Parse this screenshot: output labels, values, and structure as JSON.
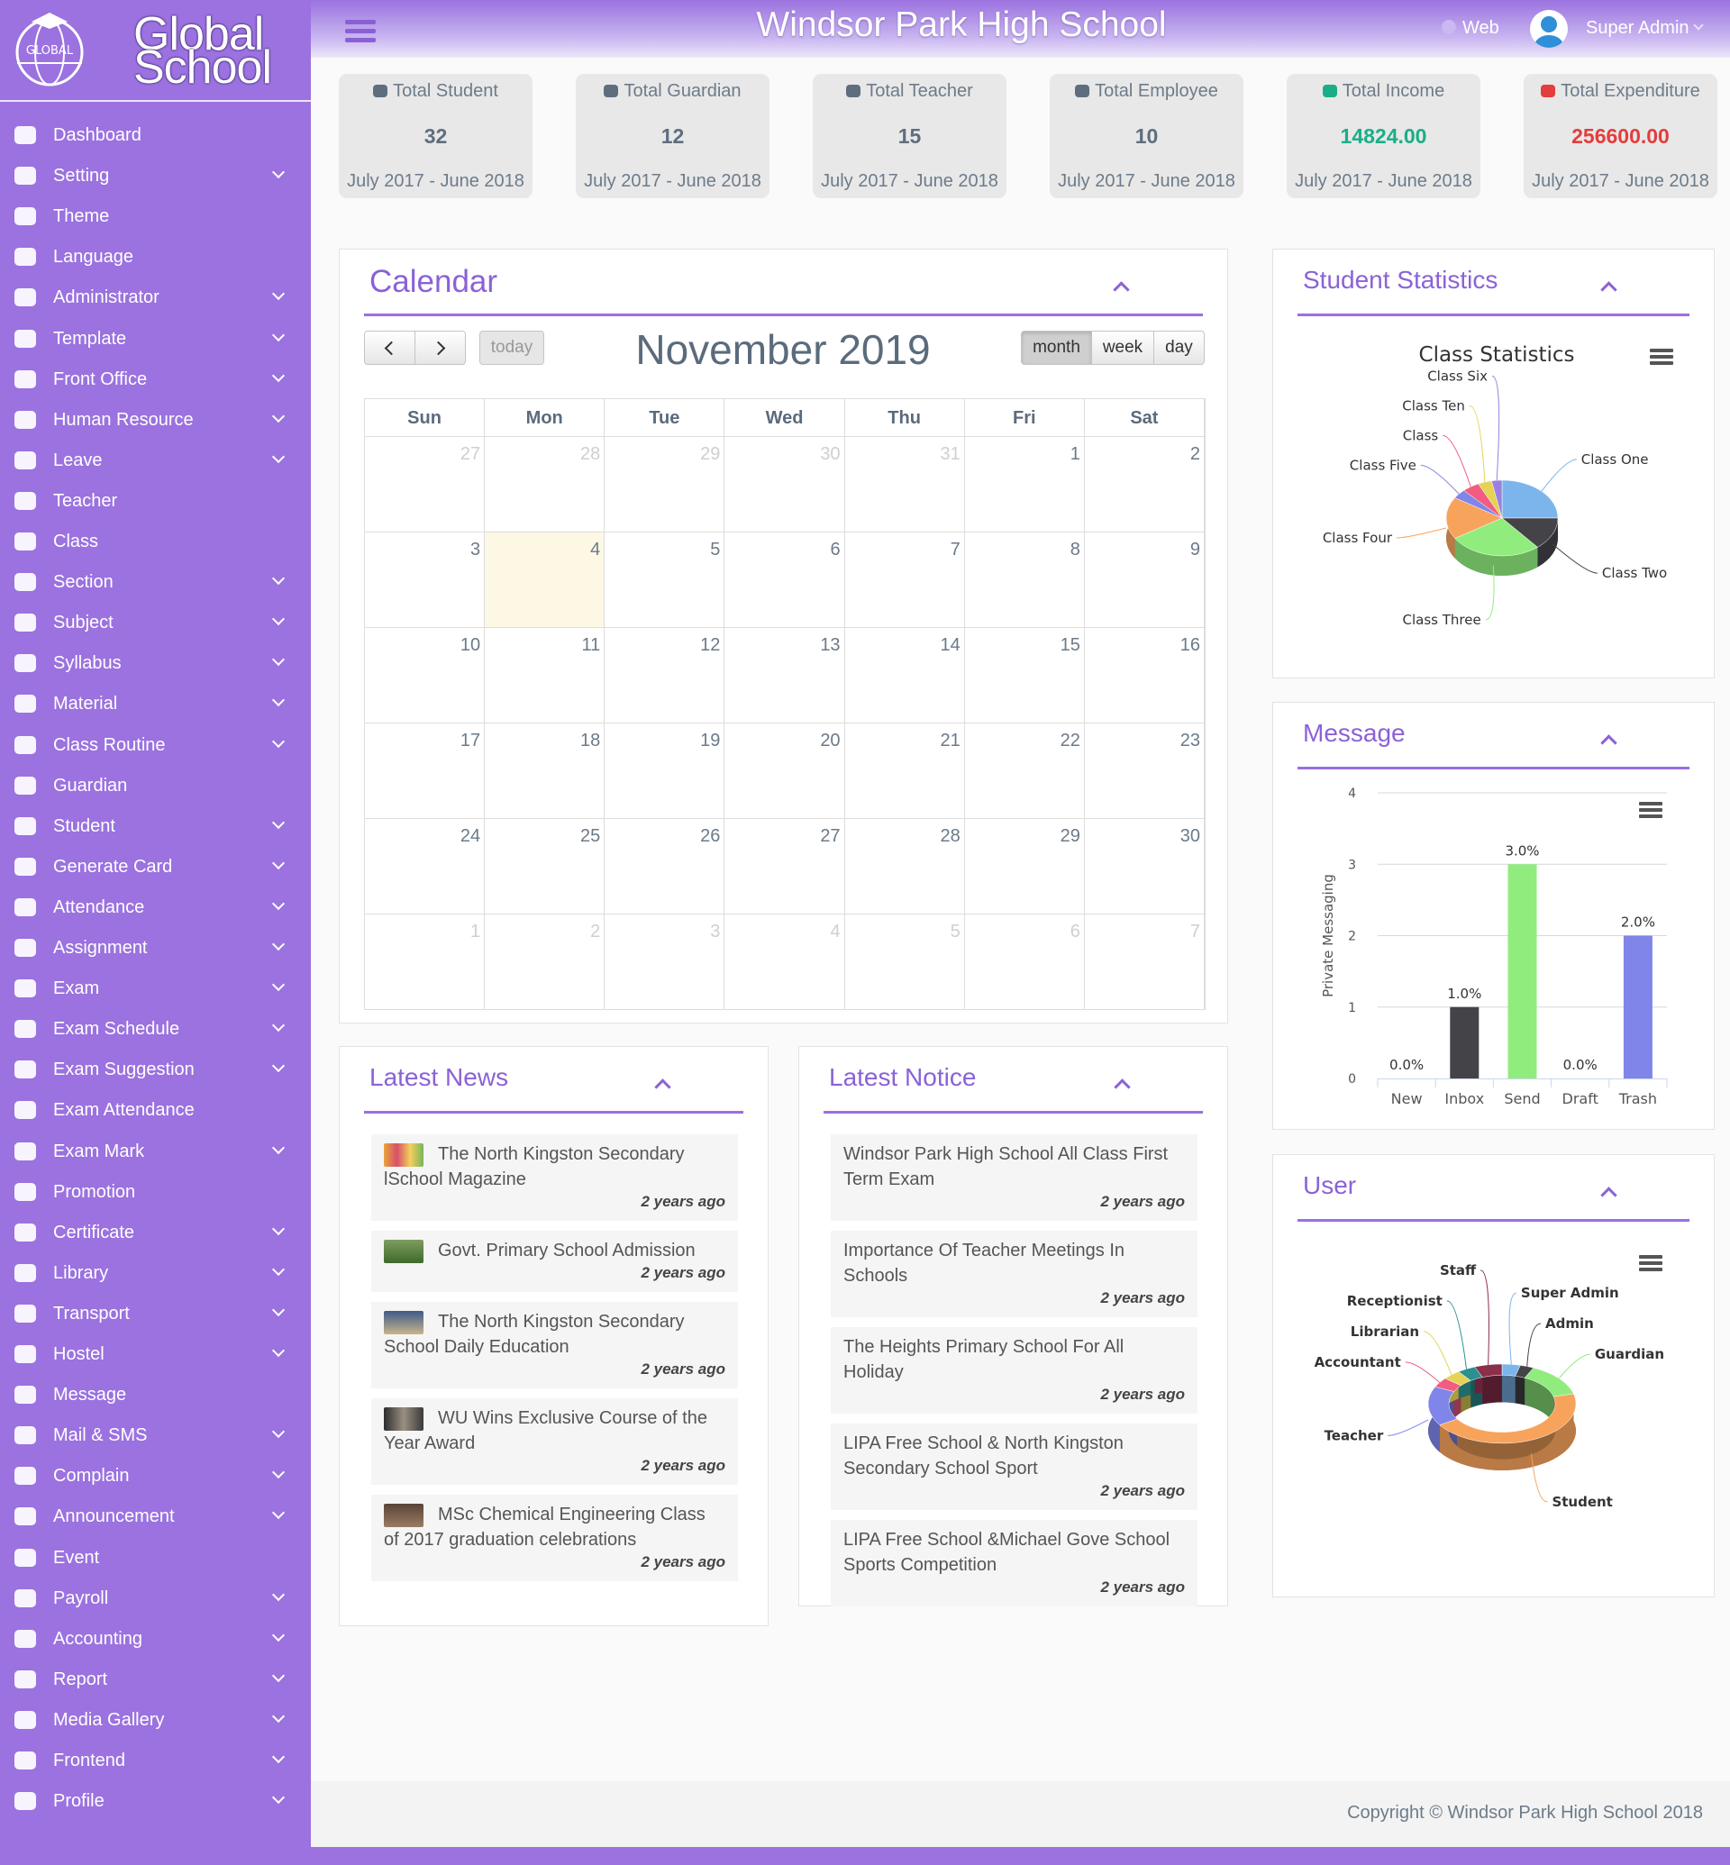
{
  "brand": {
    "logo_text": "GLOBAL",
    "name_line1": "Global",
    "name_line2": "School"
  },
  "header": {
    "title": "Windsor Park High School",
    "web_link": "Web",
    "user": "Super Admin"
  },
  "sidebar": {
    "menu": [
      {
        "label": "Dashboard",
        "submenu": false
      },
      {
        "label": "Setting",
        "submenu": true
      },
      {
        "label": "Theme",
        "submenu": false
      },
      {
        "label": "Language",
        "submenu": false
      },
      {
        "label": "Administrator",
        "submenu": true
      },
      {
        "label": "Template",
        "submenu": true
      },
      {
        "label": "Front Office",
        "submenu": true
      },
      {
        "label": "Human Resource",
        "submenu": true
      },
      {
        "label": "Leave",
        "submenu": true
      },
      {
        "label": "Teacher",
        "submenu": false
      },
      {
        "label": "Class",
        "submenu": false
      },
      {
        "label": "Section",
        "submenu": true
      },
      {
        "label": "Subject",
        "submenu": true
      },
      {
        "label": "Syllabus",
        "submenu": true
      },
      {
        "label": "Material",
        "submenu": true
      },
      {
        "label": "Class Routine",
        "submenu": true
      },
      {
        "label": "Guardian",
        "submenu": false
      },
      {
        "label": "Student",
        "submenu": true
      },
      {
        "label": "Generate Card",
        "submenu": true
      },
      {
        "label": "Attendance",
        "submenu": true
      },
      {
        "label": "Assignment",
        "submenu": true
      },
      {
        "label": "Exam",
        "submenu": true
      },
      {
        "label": "Exam Schedule",
        "submenu": true
      },
      {
        "label": "Exam Suggestion",
        "submenu": true
      },
      {
        "label": "Exam Attendance",
        "submenu": false
      },
      {
        "label": "Exam Mark",
        "submenu": true
      },
      {
        "label": "Promotion",
        "submenu": false
      },
      {
        "label": "Certificate",
        "submenu": true
      },
      {
        "label": "Library",
        "submenu": true
      },
      {
        "label": "Transport",
        "submenu": true
      },
      {
        "label": "Hostel",
        "submenu": true
      },
      {
        "label": "Message",
        "submenu": false
      },
      {
        "label": "Mail & SMS",
        "submenu": true
      },
      {
        "label": "Complain",
        "submenu": true
      },
      {
        "label": "Announcement",
        "submenu": true
      },
      {
        "label": "Event",
        "submenu": false
      },
      {
        "label": "Payroll",
        "submenu": true
      },
      {
        "label": "Accounting",
        "submenu": true
      },
      {
        "label": "Report",
        "submenu": true
      },
      {
        "label": "Media Gallery",
        "submenu": true
      },
      {
        "label": "Frontend",
        "submenu": true
      },
      {
        "label": "Profile",
        "submenu": true
      }
    ]
  },
  "stats": [
    {
      "label": "Total Student",
      "value": 32,
      "period": "July 2017 - June 2018",
      "color": "#5f6e7e"
    },
    {
      "label": "Total Guardian",
      "value": 12,
      "period": "July 2017 - June 2018",
      "color": "#5f6e7e"
    },
    {
      "label": "Total Teacher",
      "value": 15,
      "period": "July 2017 - June 2018",
      "color": "#5f6e7e"
    },
    {
      "label": "Total Employee",
      "value": 10,
      "period": "July 2017 - June 2018",
      "color": "#5f6e7e"
    },
    {
      "label": "Total Income",
      "value": "14824.00",
      "period": "July 2017 - June 2018",
      "color": "#1aae88"
    },
    {
      "label": "Total Expenditure",
      "value": "256600.00",
      "period": "July 2017 - June 2018",
      "color": "#e33d3d"
    }
  ],
  "calendar": {
    "title": "Calendar",
    "month_title": "November 2019",
    "today_button": "today",
    "views": [
      "month",
      "week",
      "day"
    ],
    "active_view": "month",
    "weekdays": [
      "Sun",
      "Mon",
      "Tue",
      "Wed",
      "Thu",
      "Fri",
      "Sat"
    ],
    "weeks": [
      [
        27,
        28,
        29,
        30,
        31,
        1,
        2
      ],
      [
        3,
        4,
        5,
        6,
        7,
        8,
        9
      ],
      [
        10,
        11,
        12,
        13,
        14,
        15,
        16
      ],
      [
        17,
        18,
        19,
        20,
        21,
        22,
        23
      ],
      [
        24,
        25,
        26,
        27,
        28,
        29,
        30
      ],
      [
        1,
        2,
        3,
        4,
        5,
        6,
        7
      ]
    ]
  },
  "panels": {
    "student_statistics": "Student Statistics",
    "message": "Message",
    "user": "User",
    "latest_news": "Latest News",
    "latest_notice": "Latest Notice"
  },
  "news": [
    {
      "title": "The North Kingston Secondary lSchool Magazine",
      "time": "2 years ago"
    },
    {
      "title": "Govt. Primary School Admission",
      "time": "2 years ago"
    },
    {
      "title": "The North Kingston Secondary School Daily Education",
      "time": "2 years ago"
    },
    {
      "title": "WU Wins Exclusive Course of the Year Award",
      "time": "2 years ago"
    },
    {
      "title": "MSc Chemical Engineering Class of 2017 graduation celebrations",
      "time": "2 years ago"
    }
  ],
  "notices": [
    {
      "title": "Windsor Park High School All Class First Term Exam",
      "time": "2 years ago"
    },
    {
      "title": "Importance Of Teacher Meetings In Schools",
      "time": "2 years ago"
    },
    {
      "title": "The Heights Primary School For All Holiday",
      "time": "2 years ago"
    },
    {
      "title": "LIPA Free School & North Kingston Secondary School Sport",
      "time": "2 years ago"
    },
    {
      "title": "LIPA Free School &Michael Gove School Sports Competition",
      "time": "2 years ago"
    }
  ],
  "footer": {
    "copyright": "Copyright © Windsor Park High School 2018"
  },
  "chart_data": [
    {
      "type": "pie",
      "title": "Class Statistics",
      "categories": [
        "Class One",
        "Class Two",
        "Class Three",
        "Class Four",
        "Class Five",
        "Class",
        "Class Ten",
        "Class Six"
      ],
      "values": [
        25,
        14,
        27,
        18,
        4,
        5,
        4,
        3
      ],
      "colors": [
        "#7cb5ec",
        "#434348",
        "#90ed7d",
        "#f7a35c",
        "#8085e9",
        "#f15c80",
        "#e4d354",
        "#9b7fe0"
      ]
    },
    {
      "type": "bar",
      "y_label": "Private Messaging",
      "categories": [
        "New",
        "Inbox",
        "Send",
        "Draft",
        "Trash"
      ],
      "values": [
        0,
        1,
        3,
        0,
        2
      ],
      "value_labels": [
        "0.0%",
        "1.0%",
        "3.0%",
        "0.0%",
        "2.0%"
      ],
      "colors": [
        "#7cb5ec",
        "#434348",
        "#90ed7d",
        "#f7a35c",
        "#8085e9"
      ],
      "ylim": [
        0,
        4
      ],
      "yticks": [
        0,
        1,
        2,
        3,
        4
      ],
      "grid": true
    },
    {
      "type": "donut",
      "categories": [
        "Super Admin",
        "Admin",
        "Guardian",
        "Student",
        "Teacher",
        "Accountant",
        "Librarian",
        "Receptionist",
        "Staff"
      ],
      "values": [
        4,
        3,
        14,
        45,
        16,
        4,
        4,
        4,
        6
      ],
      "colors": [
        "#7cb5ec",
        "#434348",
        "#90ed7d",
        "#f7a35c",
        "#8085e9",
        "#f15c80",
        "#e4d354",
        "#2b908f",
        "#8b2f4a"
      ]
    }
  ]
}
